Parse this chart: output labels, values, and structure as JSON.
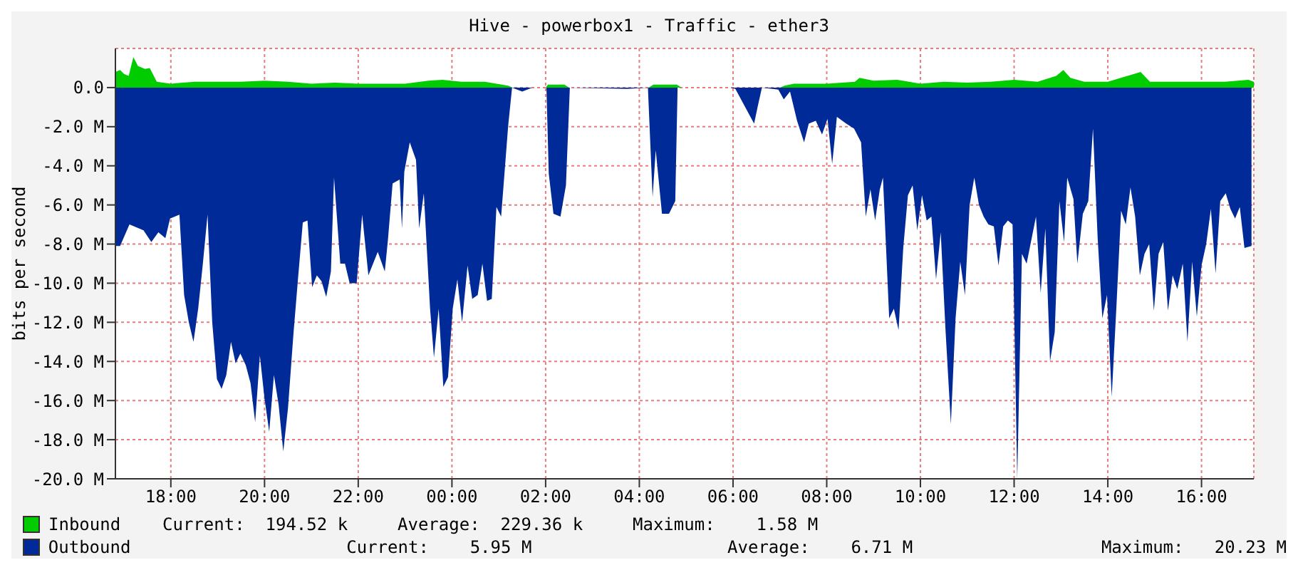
{
  "chart_data": {
    "type": "area",
    "title": "Hive - powerbox1 - Traffic - ether3",
    "ylabel": "bits per second",
    "xlim": [
      "2000-01-01T16:49",
      "2000-01-02T17:07"
    ],
    "xticks": [
      {
        "value": "2000-01-01T18:00",
        "label": "18:00"
      },
      {
        "value": "2000-01-01T20:00",
        "label": "20:00"
      },
      {
        "value": "2000-01-01T22:00",
        "label": "22:00"
      },
      {
        "value": "2000-01-02T00:00",
        "label": "00:00"
      },
      {
        "value": "2000-01-02T02:00",
        "label": "02:00"
      },
      {
        "value": "2000-01-02T04:00",
        "label": "04:00"
      },
      {
        "value": "2000-01-02T06:00",
        "label": "06:00"
      },
      {
        "value": "2000-01-02T08:00",
        "label": "08:00"
      },
      {
        "value": "2000-01-02T10:00",
        "label": "10:00"
      },
      {
        "value": "2000-01-02T12:00",
        "label": "12:00"
      },
      {
        "value": "2000-01-02T14:00",
        "label": "14:00"
      },
      {
        "value": "2000-01-02T16:00",
        "label": "16:00"
      }
    ],
    "ylim": [
      -20,
      2
    ],
    "yticks": [
      {
        "value": 0,
        "label": "0.0"
      },
      {
        "value": -2,
        "label": "-2.0 M"
      },
      {
        "value": -4,
        "label": "-4.0 M"
      },
      {
        "value": -6,
        "label": "-6.0 M"
      },
      {
        "value": -8,
        "label": "-8.0 M"
      },
      {
        "value": -10,
        "label": "-10.0 M"
      },
      {
        "value": -12,
        "label": "-12.0 M"
      },
      {
        "value": -14,
        "label": "-14.0 M"
      },
      {
        "value": -16,
        "label": "-16.0 M"
      },
      {
        "value": -18,
        "label": "-18.0 M"
      },
      {
        "value": -20,
        "label": "-20.0 M"
      }
    ],
    "grid": true,
    "legend": "bottom",
    "annotations": [
      "Current:  194.52 k",
      "Average:  229.36 k",
      "Maximum:    1.58 M",
      "Current:    5.95 M",
      "Average:    6.71 M",
      "Maximum:   20.23 M"
    ],
    "series": [
      {
        "name": "Inbound",
        "color": "#00cc00",
        "x": [
          "2000-01-01T16:49",
          "2000-01-01T16:55",
          "2000-01-01T17:00",
          "2000-01-01T17:06",
          "2000-01-01T17:12",
          "2000-01-01T17:18",
          "2000-01-01T17:27",
          "2000-01-01T17:33",
          "2000-01-01T17:42",
          "2000-01-01T18:00",
          "2000-01-01T18:30",
          "2000-01-01T19:00",
          "2000-01-01T19:30",
          "2000-01-01T20:00",
          "2000-01-01T20:30",
          "2000-01-01T21:00",
          "2000-01-01T21:30",
          "2000-01-01T22:00",
          "2000-01-01T22:30",
          "2000-01-01T23:00",
          "2000-01-01T23:30",
          "2000-01-01T23:48",
          "2000-01-02T00:12",
          "2000-01-02T00:42",
          "2000-01-02T01:12",
          "2000-01-02T01:18",
          "2000-01-02T02:00",
          "2000-01-02T02:03",
          "2000-01-02T02:24",
          "2000-01-02T02:30",
          "2000-01-02T04:12",
          "2000-01-02T04:18",
          "2000-01-02T04:48",
          "2000-01-02T04:54",
          "2000-01-02T07:00",
          "2000-01-02T07:06",
          "2000-01-02T07:18",
          "2000-01-02T08:00",
          "2000-01-02T08:36",
          "2000-01-02T08:42",
          "2000-01-02T09:00",
          "2000-01-02T09:30",
          "2000-01-02T10:00",
          "2000-01-02T10:30",
          "2000-01-02T11:00",
          "2000-01-02T11:30",
          "2000-01-02T12:00",
          "2000-01-02T12:30",
          "2000-01-02T12:54",
          "2000-01-02T13:03",
          "2000-01-02T13:12",
          "2000-01-02T13:30",
          "2000-01-02T14:00",
          "2000-01-02T14:42",
          "2000-01-02T14:54",
          "2000-01-02T15:30",
          "2000-01-02T16:00",
          "2000-01-02T16:30",
          "2000-01-02T17:00",
          "2000-01-02T17:07"
        ],
        "values": [
          0.8,
          0.9,
          0.7,
          0.6,
          1.55,
          1.1,
          0.95,
          1.0,
          0.3,
          0.2,
          0.3,
          0.3,
          0.3,
          0.35,
          0.3,
          0.2,
          0.25,
          0.2,
          0.2,
          0.2,
          0.35,
          0.4,
          0.3,
          0.3,
          0.1,
          0,
          0,
          0.15,
          0.15,
          0,
          0,
          0.15,
          0.15,
          0,
          0,
          0.1,
          0.2,
          0.2,
          0.3,
          0.5,
          0.35,
          0.4,
          0.2,
          0.3,
          0.25,
          0.3,
          0.4,
          0.3,
          0.6,
          0.9,
          0.5,
          0.3,
          0.3,
          0.8,
          0.3,
          0.3,
          0.3,
          0.3,
          0.4,
          0.3
        ]
      },
      {
        "name": "Outbound",
        "color": "#002a97",
        "x": [
          "2000-01-01T16:49",
          "2000-01-01T16:55",
          "2000-01-01T17:07",
          "2000-01-01T17:25",
          "2000-01-01T17:35",
          "2000-01-01T17:44",
          "2000-01-01T17:53",
          "2000-01-01T17:59",
          "2000-01-01T18:11",
          "2000-01-01T18:17",
          "2000-01-01T18:23",
          "2000-01-01T18:29",
          "2000-01-01T18:35",
          "2000-01-01T18:41",
          "2000-01-01T18:47",
          "2000-01-01T18:53",
          "2000-01-01T18:59",
          "2000-01-01T19:05",
          "2000-01-01T19:11",
          "2000-01-01T19:17",
          "2000-01-01T19:23",
          "2000-01-01T19:29",
          "2000-01-01T19:36",
          "2000-01-01T19:42",
          "2000-01-01T19:48",
          "2000-01-01T19:54",
          "2000-01-01T20:00",
          "2000-01-01T20:06",
          "2000-01-01T20:12",
          "2000-01-01T20:18",
          "2000-01-01T20:24",
          "2000-01-01T20:30",
          "2000-01-01T20:37",
          "2000-01-01T20:43",
          "2000-01-01T20:49",
          "2000-01-01T20:55",
          "2000-01-01T21:01",
          "2000-01-01T21:07",
          "2000-01-01T21:13",
          "2000-01-01T21:19",
          "2000-01-01T21:25",
          "2000-01-01T21:29",
          "2000-01-01T21:37",
          "2000-01-01T21:43",
          "2000-01-01T21:49",
          "2000-01-01T21:58",
          "2000-01-01T22:05",
          "2000-01-01T22:13",
          "2000-01-01T22:19",
          "2000-01-01T22:25",
          "2000-01-01T22:34",
          "2000-01-01T22:38",
          "2000-01-01T22:44",
          "2000-01-01T22:53",
          "2000-01-01T22:56",
          "2000-01-01T22:59",
          "2000-01-01T23:06",
          "2000-01-01T23:14",
          "2000-01-01T23:18",
          "2000-01-01T23:24",
          "2000-01-01T23:32",
          "2000-01-01T23:37",
          "2000-01-01T23:43",
          "2000-01-01T23:49",
          "2000-01-01T23:55",
          "2000-01-02T00:01",
          "2000-01-02T00:07",
          "2000-01-02T00:13",
          "2000-01-02T00:20",
          "2000-01-02T00:26",
          "2000-01-02T00:33",
          "2000-01-02T00:39",
          "2000-01-02T00:45",
          "2000-01-02T00:51",
          "2000-01-02T00:57",
          "2000-01-02T01:03",
          "2000-01-02T01:12",
          "2000-01-02T01:17",
          "2000-01-02T01:30",
          "2000-01-02T01:43",
          "2000-01-02T02:01",
          "2000-01-02T02:04",
          "2000-01-02T02:10",
          "2000-01-02T02:19",
          "2000-01-02T02:26",
          "2000-01-02T02:31",
          "2000-01-02T03:44",
          "2000-01-02T04:11",
          "2000-01-02T04:17",
          "2000-01-02T04:21",
          "2000-01-02T04:29",
          "2000-01-02T04:38",
          "2000-01-02T04:46",
          "2000-01-02T04:49",
          "2000-01-02T05:57",
          "2000-01-02T06:03",
          "2000-01-02T06:27",
          "2000-01-02T06:32",
          "2000-01-02T06:37",
          "2000-01-02T06:58",
          "2000-01-02T07:05",
          "2000-01-02T07:13",
          "2000-01-02T07:22",
          "2000-01-02T07:31",
          "2000-01-02T07:37",
          "2000-01-02T07:46",
          "2000-01-02T07:54",
          "2000-01-02T08:01",
          "2000-01-02T08:07",
          "2000-01-02T08:13",
          "2000-01-02T08:25",
          "2000-01-02T08:35",
          "2000-01-02T08:44",
          "2000-01-02T08:50",
          "2000-01-02T08:56",
          "2000-01-02T09:02",
          "2000-01-02T09:08",
          "2000-01-02T09:12",
          "2000-01-02T09:20",
          "2000-01-02T09:26",
          "2000-01-02T09:32",
          "2000-01-02T09:38",
          "2000-01-02T09:44",
          "2000-01-02T09:50",
          "2000-01-02T09:56",
          "2000-01-02T10:02",
          "2000-01-02T10:08",
          "2000-01-02T10:14",
          "2000-01-02T10:20",
          "2000-01-02T10:26",
          "2000-01-02T10:32",
          "2000-01-02T10:39",
          "2000-01-02T10:45",
          "2000-01-02T10:51",
          "2000-01-02T10:57",
          "2000-01-02T11:03",
          "2000-01-02T11:09",
          "2000-01-02T11:15",
          "2000-01-02T11:21",
          "2000-01-02T11:27",
          "2000-01-02T11:34",
          "2000-01-02T11:40",
          "2000-01-02T11:46",
          "2000-01-02T11:52",
          "2000-01-02T11:58",
          "2000-01-02T12:04",
          "2000-01-02T12:10",
          "2000-01-02T12:16",
          "2000-01-02T12:22",
          "2000-01-02T12:28",
          "2000-01-02T12:34",
          "2000-01-02T12:40",
          "2000-01-02T12:46",
          "2000-01-02T12:52",
          "2000-01-02T12:58",
          "2000-01-02T13:04",
          "2000-01-02T13:08",
          "2000-01-02T13:16",
          "2000-01-02T13:21",
          "2000-01-02T13:28",
          "2000-01-02T13:35",
          "2000-01-02T13:41",
          "2000-01-02T13:47",
          "2000-01-02T13:53",
          "2000-01-02T13:59",
          "2000-01-02T14:05",
          "2000-01-02T14:11",
          "2000-01-02T14:17",
          "2000-01-02T14:23",
          "2000-01-02T14:29",
          "2000-01-02T14:35",
          "2000-01-02T14:41",
          "2000-01-02T14:47",
          "2000-01-02T14:53",
          "2000-01-02T14:59",
          "2000-01-02T15:05",
          "2000-01-02T15:11",
          "2000-01-02T15:17",
          "2000-01-02T15:23",
          "2000-01-02T15:29",
          "2000-01-02T15:36",
          "2000-01-02T15:42",
          "2000-01-02T15:48",
          "2000-01-02T15:54",
          "2000-01-02T16:00",
          "2000-01-02T16:06",
          "2000-01-02T16:12",
          "2000-01-02T16:18",
          "2000-01-02T16:24",
          "2000-01-02T16:31",
          "2000-01-02T16:37",
          "2000-01-02T16:43",
          "2000-01-02T16:49",
          "2000-01-02T16:55",
          "2000-01-02T17:04"
        ],
        "values": [
          -8.1,
          -8.1,
          -7.0,
          -7.3,
          -7.9,
          -7.4,
          -7.7,
          -6.7,
          -6.5,
          -10.6,
          -12.0,
          -13.0,
          -11.3,
          -9.0,
          -6.5,
          -12.0,
          -14.9,
          -15.4,
          -14.7,
          -13.0,
          -14.1,
          -13.6,
          -14.2,
          -15.1,
          -17.1,
          -13.7,
          -15.9,
          -17.6,
          -14.7,
          -16.2,
          -18.6,
          -16.4,
          -12.6,
          -9.7,
          -6.9,
          -6.8,
          -10.2,
          -9.6,
          -9.9,
          -10.7,
          -9.4,
          -4.6,
          -9.0,
          -9.0,
          -10.0,
          -10.0,
          -6.5,
          -9.6,
          -9.0,
          -8.4,
          -9.4,
          -7.8,
          -4.9,
          -4.7,
          -7.2,
          -4.3,
          -2.8,
          -3.7,
          -7.2,
          -5.4,
          -11.3,
          -13.8,
          -11.3,
          -15.3,
          -14.8,
          -11.3,
          -9.8,
          -12.0,
          -9.1,
          -10.8,
          -10.6,
          -9.0,
          -10.9,
          -10.8,
          -6.1,
          -6.6,
          -1.96,
          0,
          -0.2,
          0,
          0,
          -4.4,
          -6.45,
          -6.6,
          -5.0,
          0,
          -0.07,
          0,
          -5.6,
          -3.2,
          -6.45,
          -6.45,
          -5.8,
          0,
          0,
          -0.07,
          -1.84,
          -0.9,
          0,
          -0.1,
          -0.6,
          -0.2,
          -1.7,
          -2.8,
          -1.84,
          -1.7,
          -2.4,
          -1.6,
          -3.9,
          -1.5,
          -1.84,
          -2.1,
          -2.8,
          -6.6,
          -5.2,
          -6.8,
          -5.2,
          -4.6,
          -11.8,
          -11.3,
          -12.4,
          -8.2,
          -5.5,
          -5.0,
          -7.3,
          -5.5,
          -6.8,
          -6.6,
          -9.8,
          -7.4,
          -12.3,
          -17.2,
          -11.8,
          -8.9,
          -10.6,
          -6.0,
          -4.6,
          -6.0,
          -6.6,
          -7.0,
          -7.1,
          -9.1,
          -7.1,
          -6.8,
          -7.0,
          -20.0,
          -8.5,
          -9.0,
          -7.8,
          -6.6,
          -10.5,
          -7.2,
          -14.0,
          -12.5,
          -5.8,
          -7.9,
          -4.6,
          -5.7,
          -9.0,
          -6.45,
          -5.8,
          -2.1,
          -7.7,
          -11.8,
          -10.6,
          -15.8,
          -11.2,
          -6.3,
          -7.0,
          -5.1,
          -6.6,
          -9.6,
          -8.5,
          -8.0,
          -11.4,
          -8.5,
          -7.9,
          -11.4,
          -9.6,
          -10.3,
          -9.0,
          -13.0,
          -8.9,
          -11.7,
          -9.1,
          -8.0,
          -6.2,
          -9.5,
          -5.8,
          -5.4,
          -6.2,
          -6.7,
          -6.1,
          -8.2,
          -8.1
        ]
      }
    ]
  }
}
